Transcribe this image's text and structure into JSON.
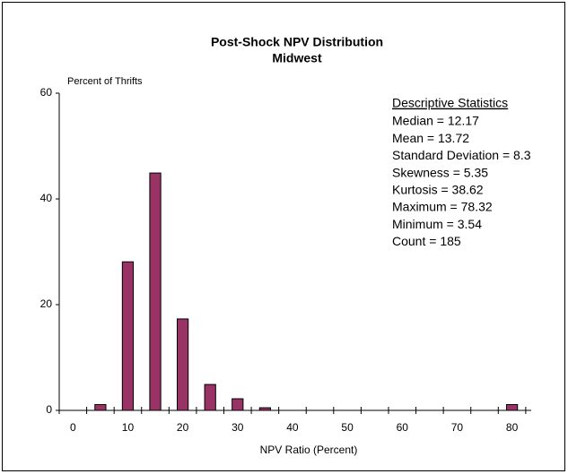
{
  "chart_data": {
    "type": "histogram",
    "title": "Post-Shock NPV Distribution",
    "subtitle": "Midwest",
    "y_label": "Percent of Thrifts",
    "x_label": "NPV Ratio (Percent)",
    "bins": [
      -2.5,
      2.5,
      7.5,
      12.5,
      17.5,
      22.5,
      27.5,
      32.5,
      37.5,
      42.5,
      47.5,
      52.5,
      57.5,
      62.5,
      67.5,
      72.5,
      77.5,
      82.5
    ],
    "counts": [
      0,
      1.1,
      28.1,
      44.9,
      17.3,
      4.9,
      2.2,
      0.5,
      0,
      0,
      0,
      0,
      0,
      0,
      0,
      0,
      1.1
    ],
    "color": "#993366",
    "xlim": [
      -2.5,
      83.5
    ],
    "ylim": [
      0,
      60
    ],
    "xticks": [
      0,
      10,
      20,
      30,
      40,
      50,
      60,
      70,
      80
    ],
    "yticks": [
      0,
      20,
      40,
      60
    ],
    "stats_title": "Descriptive Statistics",
    "stats": [
      "Median = 12.17",
      "Mean = 13.72",
      "Standard Deviation = 8.3",
      "Skewness = 5.35",
      "Kurtosis = 38.62",
      "Maximum = 78.32",
      "Minimum = 3.54",
      "Count = 185"
    ]
  }
}
